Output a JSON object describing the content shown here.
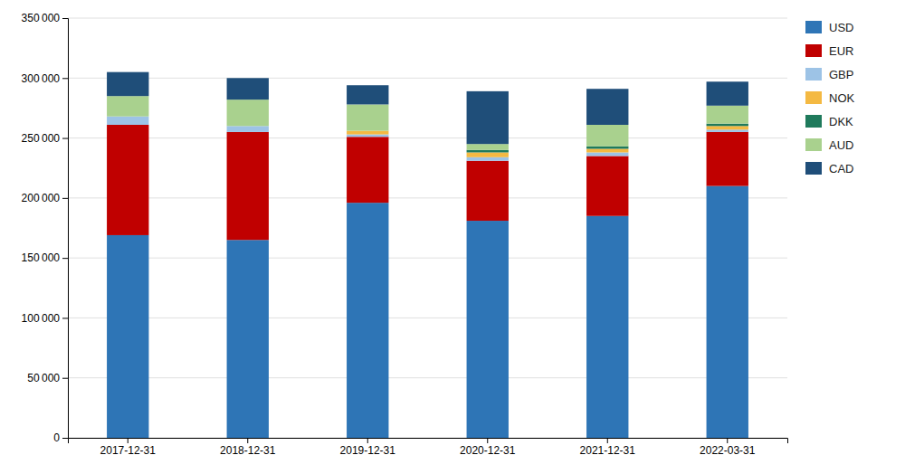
{
  "chart_data": {
    "type": "bar",
    "stacked": true,
    "categories": [
      "2017-12-31",
      "2018-12-31",
      "2019-12-31",
      "2020-12-31",
      "2021-12-31",
      "2022-03-31"
    ],
    "series": [
      {
        "name": "USD",
        "color": "#2E75B6",
        "values": [
          169000,
          165000,
          196000,
          181000,
          185000,
          210000
        ]
      },
      {
        "name": "EUR",
        "color": "#C00000",
        "values": [
          92000,
          90000,
          55000,
          50000,
          50000,
          45000
        ]
      },
      {
        "name": "GBP",
        "color": "#9DC3E6",
        "values": [
          7000,
          5000,
          2000,
          3000,
          3000,
          2000
        ]
      },
      {
        "name": "NOK",
        "color": "#F4B942",
        "values": [
          0,
          0,
          3000,
          4000,
          3000,
          3000
        ]
      },
      {
        "name": "DKK",
        "color": "#1F7A5C",
        "values": [
          0,
          0,
          0,
          2000,
          2000,
          2000
        ]
      },
      {
        "name": "AUD",
        "color": "#A9D18E",
        "values": [
          17000,
          22000,
          22000,
          5000,
          18000,
          15000
        ]
      },
      {
        "name": "CAD",
        "color": "#1F4E79",
        "values": [
          20000,
          18000,
          16000,
          44000,
          30000,
          20000
        ]
      }
    ],
    "ylim": [
      0,
      350000
    ],
    "yticks": [
      0,
      {
        "value": 50000,
        "label": "50 000"
      },
      {
        "value": 100000,
        "label": "100 000"
      },
      {
        "value": 150000,
        "label": "150 000"
      },
      {
        "value": 200000,
        "label": "200 000"
      },
      {
        "value": 250000,
        "label": "250 000"
      },
      {
        "value": 300000,
        "label": "300 000"
      },
      {
        "value": 350000,
        "label": "350 000"
      }
    ],
    "grid": true,
    "legend": "right"
  }
}
